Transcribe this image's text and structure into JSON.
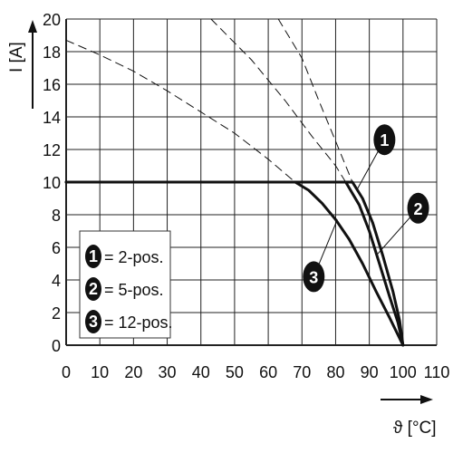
{
  "chart_data": {
    "type": "line",
    "xlabel": "ϑ [°C]",
    "ylabel": "I [A]",
    "xlim": [
      0,
      110
    ],
    "ylim": [
      0,
      20
    ],
    "x_ticks": [
      "0",
      "10",
      "20",
      "30",
      "40",
      "50",
      "60",
      "70",
      "80",
      "90",
      "100",
      "110"
    ],
    "y_ticks": [
      "0",
      "2",
      "4",
      "6",
      "8",
      "10",
      "12",
      "14",
      "16",
      "18",
      "20"
    ],
    "grid": true,
    "series": [
      {
        "name": "1",
        "style": "solid",
        "points": [
          [
            0,
            10
          ],
          [
            85,
            10
          ],
          [
            88,
            9
          ],
          [
            91,
            7.5
          ],
          [
            94,
            5.5
          ],
          [
            97,
            3.3
          ],
          [
            99,
            1.5
          ],
          [
            100,
            0
          ]
        ]
      },
      {
        "name": "2",
        "style": "solid",
        "points": [
          [
            0,
            10
          ],
          [
            83,
            10
          ],
          [
            87,
            8.6
          ],
          [
            90,
            7
          ],
          [
            93,
            5
          ],
          [
            96,
            3
          ],
          [
            98.5,
            1.4
          ],
          [
            100,
            0
          ]
        ]
      },
      {
        "name": "3",
        "style": "solid",
        "points": [
          [
            0,
            10
          ],
          [
            68,
            10
          ],
          [
            72,
            9.5
          ],
          [
            76,
            8.7
          ],
          [
            80,
            7.7
          ],
          [
            84,
            6.5
          ],
          [
            88,
            5
          ],
          [
            92,
            3.3
          ],
          [
            96,
            1.7
          ],
          [
            100,
            0
          ]
        ]
      },
      {
        "name": "1",
        "style": "dashed",
        "points": [
          [
            63,
            20
          ],
          [
            70,
            17.6
          ],
          [
            75,
            15
          ],
          [
            80,
            12.5
          ],
          [
            85,
            10
          ]
        ]
      },
      {
        "name": "2",
        "style": "dashed",
        "points": [
          [
            43,
            20
          ],
          [
            55,
            17.5
          ],
          [
            65,
            15
          ],
          [
            73,
            12.8
          ],
          [
            80,
            11
          ],
          [
            83,
            10
          ]
        ]
      },
      {
        "name": "3",
        "style": "dashed",
        "points": [
          [
            0,
            18.7
          ],
          [
            10,
            17.8
          ],
          [
            20,
            16.8
          ],
          [
            30,
            15.6
          ],
          [
            40,
            14.3
          ],
          [
            50,
            13
          ],
          [
            60,
            11.4
          ],
          [
            68,
            10
          ]
        ]
      }
    ],
    "callouts": [
      {
        "label": "1",
        "x": 94.5,
        "y": 12.6,
        "target": [
          86.5,
          9.6
        ]
      },
      {
        "label": "2",
        "x": 104.5,
        "y": 8.4,
        "target": [
          92.5,
          5.6
        ]
      },
      {
        "label": "3",
        "x": 73.5,
        "y": 4.2,
        "target": [
          80.5,
          7.7
        ]
      }
    ],
    "legend": [
      {
        "num": "1",
        "text": "= 2-pos."
      },
      {
        "num": "2",
        "text": "= 5-pos."
      },
      {
        "num": "3",
        "text": "= 12-pos."
      }
    ],
    "legend_position": "bottom-left"
  }
}
